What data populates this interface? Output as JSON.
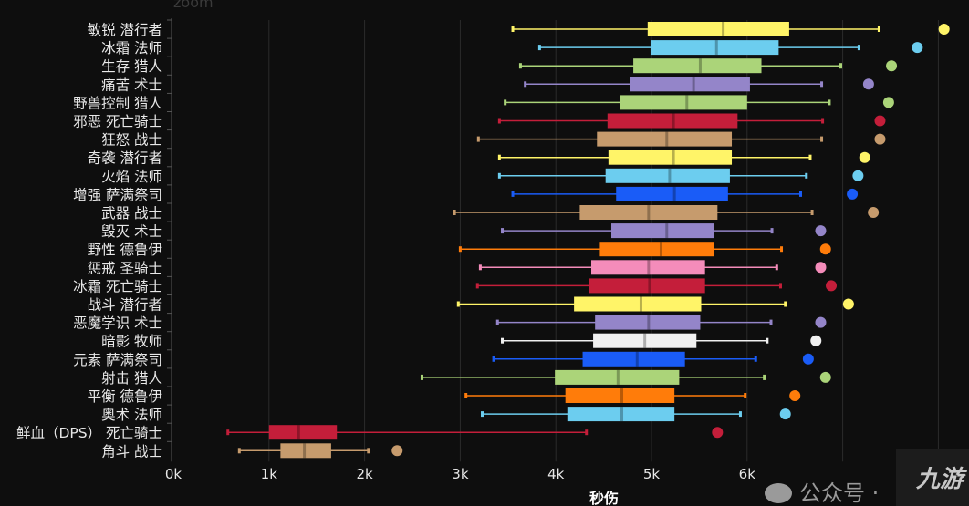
{
  "chart_data": {
    "type": "box",
    "title": "zoom",
    "xlabel": "秒伤",
    "ylabel": "",
    "xlim": [
      0,
      8200
    ],
    "xticks": [
      {
        "value": 0,
        "label": "0k"
      },
      {
        "value": 1000,
        "label": "1k"
      },
      {
        "value": 2000,
        "label": "2k"
      },
      {
        "value": 3000,
        "label": "3k"
      },
      {
        "value": 4000,
        "label": "4k"
      },
      {
        "value": 5000,
        "label": "5k"
      },
      {
        "value": 6000,
        "label": "6k"
      }
    ],
    "gridlines": [
      1000,
      2000,
      3000,
      4000,
      5000,
      6000,
      7000,
      8000
    ],
    "grid": true,
    "series": [
      {
        "name": "敏锐 潜行者",
        "color": "#fff468",
        "min": 3550,
        "q1": 4960,
        "median": 5750,
        "q3": 6440,
        "max": 7380,
        "outlier": 8060
      },
      {
        "name": "冰霜 法师",
        "color": "#6ccdef",
        "min": 3830,
        "q1": 4990,
        "median": 5680,
        "q3": 6330,
        "max": 7170,
        "outlier": 7780
      },
      {
        "name": "生存 猎人",
        "color": "#abd479",
        "min": 3630,
        "q1": 4810,
        "median": 5510,
        "q3": 6150,
        "max": 6980,
        "outlier": 7510
      },
      {
        "name": "痛苦 术士",
        "color": "#9485c9",
        "min": 3680,
        "q1": 4780,
        "median": 5440,
        "q3": 6030,
        "max": 6780,
        "outlier": 7270
      },
      {
        "name": "野兽控制 猎人",
        "color": "#abd479",
        "min": 3470,
        "q1": 4670,
        "median": 5370,
        "q3": 6000,
        "max": 6860,
        "outlier": 7480
      },
      {
        "name": "邪恶 死亡骑士",
        "color": "#c41e3a",
        "min": 3410,
        "q1": 4540,
        "median": 5230,
        "q3": 5900,
        "max": 6790,
        "outlier": 7390
      },
      {
        "name": "狂怒 战士",
        "color": "#c69b6d",
        "min": 3190,
        "q1": 4430,
        "median": 5160,
        "q3": 5840,
        "max": 6780,
        "outlier": 7390
      },
      {
        "name": "奇袭 潜行者",
        "color": "#fff468",
        "min": 3410,
        "q1": 4550,
        "median": 5230,
        "q3": 5840,
        "max": 6660,
        "outlier": 7230
      },
      {
        "name": "火焰 法师",
        "color": "#6ccdef",
        "min": 3410,
        "q1": 4520,
        "median": 5190,
        "q3": 5820,
        "max": 6620,
        "outlier": 7160
      },
      {
        "name": "增强 萨满祭司",
        "color": "#1a5cf7",
        "min": 3550,
        "q1": 4630,
        "median": 5240,
        "q3": 5800,
        "max": 6560,
        "outlier": 7100
      },
      {
        "name": "武器 战士",
        "color": "#c69b6d",
        "min": 2940,
        "q1": 4250,
        "median": 4970,
        "q3": 5690,
        "max": 6680,
        "outlier": 7320
      },
      {
        "name": "毁灭 术士",
        "color": "#9485c9",
        "min": 3440,
        "q1": 4580,
        "median": 5160,
        "q3": 5650,
        "max": 6260,
        "outlier": 6770
      },
      {
        "name": "野性 德鲁伊",
        "color": "#ff7c0a",
        "min": 3000,
        "q1": 4460,
        "median": 5100,
        "q3": 5650,
        "max": 6360,
        "outlier": 6820
      },
      {
        "name": "惩戒 圣骑士",
        "color": "#f48cba",
        "min": 3210,
        "q1": 4370,
        "median": 4970,
        "q3": 5560,
        "max": 6310,
        "outlier": 6770
      },
      {
        "name": "冰霜 死亡骑士",
        "color": "#c41e3a",
        "min": 3180,
        "q1": 4350,
        "median": 4980,
        "q3": 5560,
        "max": 6350,
        "outlier": 6880
      },
      {
        "name": "战斗 潜行者",
        "color": "#fff468",
        "min": 2980,
        "q1": 4190,
        "median": 4890,
        "q3": 5520,
        "max": 6400,
        "outlier": 7060
      },
      {
        "name": "恶魔学识 术士",
        "color": "#9485c9",
        "min": 3390,
        "q1": 4410,
        "median": 4970,
        "q3": 5510,
        "max": 6250,
        "outlier": 6770
      },
      {
        "name": "暗影 牧师",
        "color": "#f0f0f0",
        "min": 3440,
        "q1": 4390,
        "median": 4930,
        "q3": 5470,
        "max": 6210,
        "outlier": 6720
      },
      {
        "name": "元素 萨满祭司",
        "color": "#1a5cf7",
        "min": 3350,
        "q1": 4280,
        "median": 4850,
        "q3": 5350,
        "max": 6090,
        "outlier": 6640
      },
      {
        "name": "射击 猎人",
        "color": "#abd479",
        "min": 2600,
        "q1": 3990,
        "median": 4650,
        "q3": 5290,
        "max": 6180,
        "outlier": 6820
      },
      {
        "name": "平衡 德鲁伊",
        "color": "#ff7c0a",
        "min": 3060,
        "q1": 4100,
        "median": 4690,
        "q3": 5240,
        "max": 5980,
        "outlier": 6500
      },
      {
        "name": "奥术 法师",
        "color": "#6ccdef",
        "min": 3230,
        "q1": 4120,
        "median": 4690,
        "q3": 5240,
        "max": 5930,
        "outlier": 6400
      },
      {
        "name": "鲜血（DPS） 死亡骑士",
        "color": "#c41e3a",
        "min": 570,
        "q1": 1000,
        "median": 1310,
        "q3": 1710,
        "max": 4320,
        "outlier": 5690
      },
      {
        "name": "角斗 战士",
        "color": "#c69b6d",
        "min": 690,
        "q1": 1120,
        "median": 1370,
        "q3": 1650,
        "max": 2040,
        "outlier": 2340
      }
    ]
  },
  "watermark": {
    "text": "公众号 ·",
    "logo": "九游"
  }
}
